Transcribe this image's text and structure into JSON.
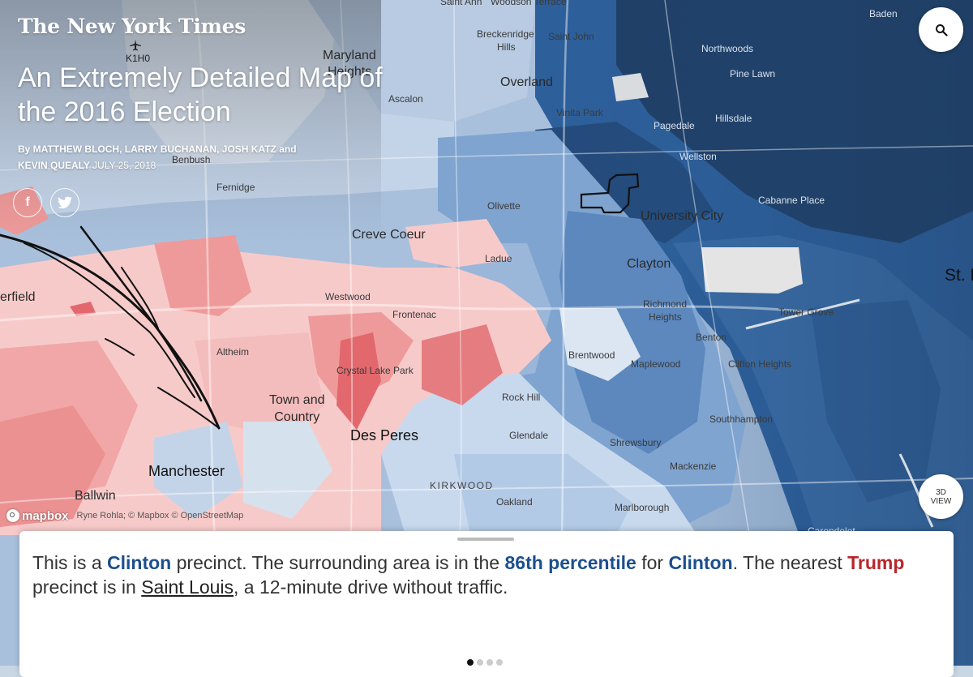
{
  "masthead": "The New York Times",
  "headline": "An Extremely Detailed Map of the 2016 Election",
  "byline": {
    "authors": "By MATTHEW BLOCH, LARRY BUCHANAN, JOSH KATZ and KEVIN QUEALY",
    "date": "JULY 25, 2018"
  },
  "share": {
    "facebook_icon": "f",
    "twitter_icon": "t"
  },
  "search_icon": "search-icon",
  "view3d": {
    "line1": "3D",
    "line2": "VIEW"
  },
  "attribution": {
    "logo": "mapbox",
    "credit": "Ryne Rohla; © Mapbox © OpenStreetMap"
  },
  "colors": {
    "trump_dark": "#e0676b",
    "trump_mid": "#ef9a9a",
    "trump_light": "#f7caca",
    "clinton_light": "#c8d9ee",
    "clinton_mid": "#7fa4cf",
    "clinton_dark": "#2d5f9a",
    "clinton_darkest": "#1f3f66"
  },
  "places": {
    "k1h0": "K1H0",
    "saint_ann": "Saint Ann",
    "woodson_terrace": "Woodson Terrace",
    "breckenridge": "Breckenridge",
    "hills": "Hills",
    "saint_john": "Saint John",
    "maryland": "Maryland",
    "heights": "Heights",
    "overland": "Overland",
    "ascalon": "Ascalon",
    "vinita_park": "Vinita Park",
    "pagedale": "Pagedale",
    "wellston": "Wellston",
    "hillsdale": "Hillsdale",
    "pine_lawn": "Pine Lawn",
    "northwoods": "Northwoods",
    "baden": "Baden",
    "benbush": "Benbush",
    "fernidge": "Fernidge",
    "olivette": "Olivette",
    "university_city": "University City",
    "cabanne_place": "Cabanne Place",
    "creve_coeur": "Creve Coeur",
    "ladue": "Ladue",
    "clayton": "Clayton",
    "st_l": "St. L",
    "erfield": "erfield",
    "westwood": "Westwood",
    "frontenac": "Frontenac",
    "richmond": "Richmond",
    "heights2": "Heights",
    "tower_grove": "Tower Grove",
    "benton": "Benton",
    "altheim": "Altheim",
    "brentwood": "Brentwood",
    "maplewood": "Maplewood",
    "clifton_heights": "Clifton Heights",
    "crystal_lake_park": "Crystal Lake Park",
    "town_and": "Town and",
    "country": "Country",
    "rock_hill": "Rock Hill",
    "southhampton": "Southhampton",
    "des_peres": "Des Peres",
    "glendale": "Glendale",
    "shrewsbury": "Shrewsbury",
    "manchester": "Manchester",
    "mackenzie": "Mackenzie",
    "kirkwood": "KIRKWOOD",
    "ballwin": "Ballwin",
    "oakland": "Oakland",
    "marlborough": "Marlborough",
    "carondelet": "Carondelet"
  },
  "panel": {
    "s1": "This is a ",
    "clinton1": "Clinton",
    "s2": " precinct. The surrounding area is in the ",
    "percentile": "86th percentile",
    "s3": " for ",
    "clinton2": "Clinton",
    "s4": ". The nearest ",
    "trump": "Trump",
    "s5": " precinct is in ",
    "place": "Saint Louis",
    "s6": ", a 12-minute drive without traffic."
  },
  "pager": {
    "pages": 4,
    "active": 1
  }
}
